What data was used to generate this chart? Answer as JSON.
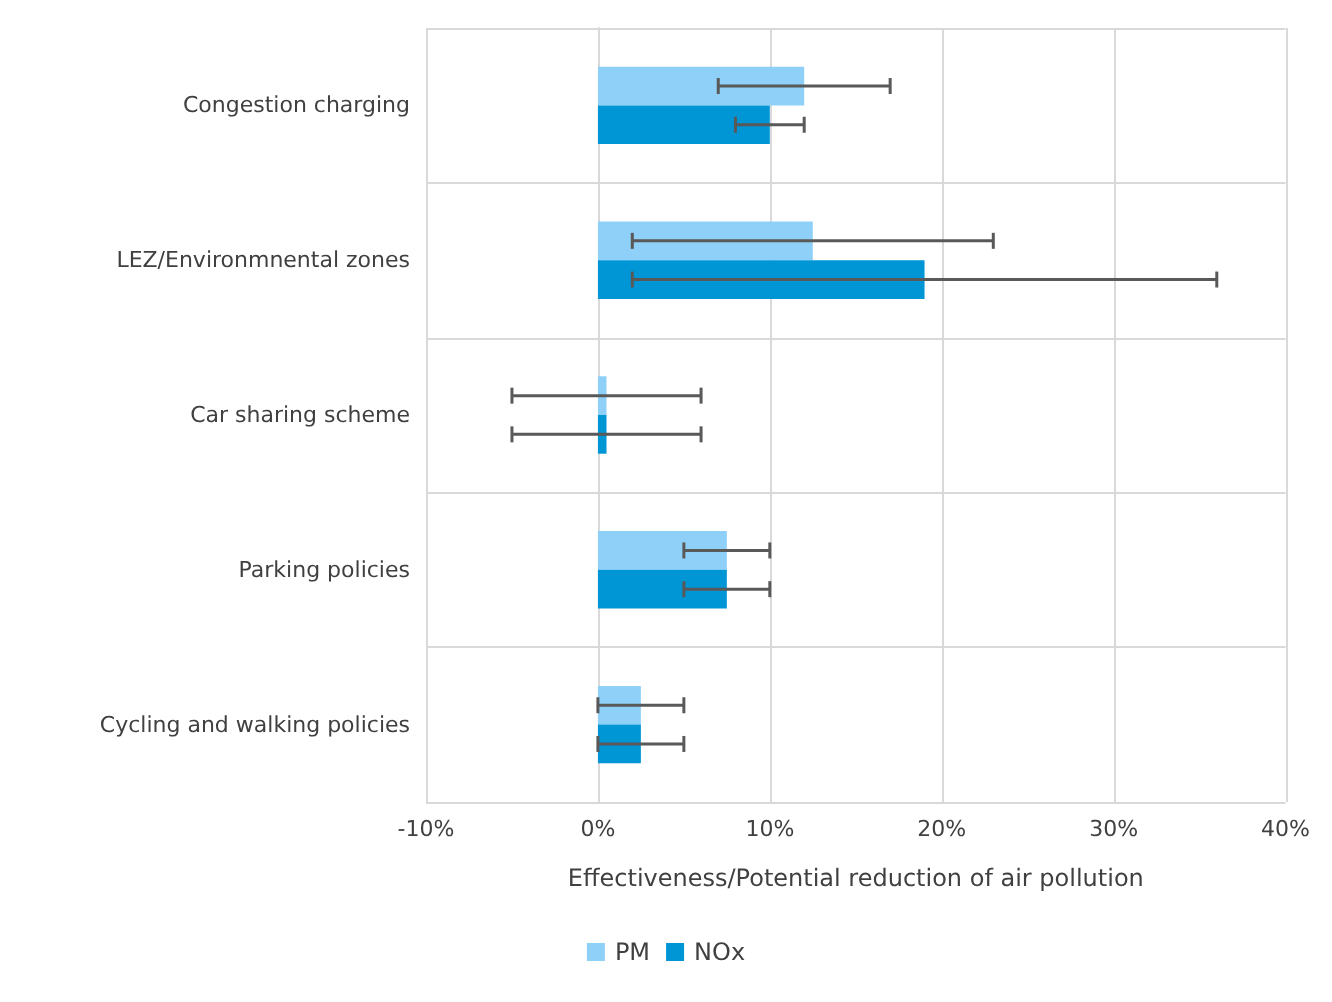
{
  "chart_data": {
    "type": "bar",
    "orientation": "horizontal",
    "xlabel": "Effectiveness/Potential reduction of air pollution",
    "categories": [
      "Congestion charging",
      "LEZ/Environmnental zones",
      "Car sharing scheme",
      "Parking policies",
      "Cycling and walking policies"
    ],
    "series": [
      {
        "name": "PM",
        "color": "#8fd0f8",
        "values": [
          12,
          12.5,
          0.5,
          7.5,
          2.5
        ],
        "errors": [
          [
            7,
            17
          ],
          [
            2,
            23
          ],
          [
            -5,
            6
          ],
          [
            5,
            10
          ],
          [
            0,
            5
          ]
        ]
      },
      {
        "name": "NOx",
        "color": "#0096d6",
        "values": [
          10,
          19,
          0.5,
          7.5,
          2.5
        ],
        "errors": [
          [
            8,
            12
          ],
          [
            2,
            36
          ],
          [
            -5,
            6
          ],
          [
            5,
            10
          ],
          [
            0,
            5
          ]
        ]
      }
    ],
    "xlim": [
      -10,
      40
    ],
    "xticks": [
      {
        "value": -10,
        "label": "-10%"
      },
      {
        "value": 0,
        "label": "0%"
      },
      {
        "value": 10,
        "label": "10%"
      },
      {
        "value": 20,
        "label": "20%"
      },
      {
        "value": 30,
        "label": "30%"
      },
      {
        "value": 40,
        "label": "40%"
      }
    ],
    "grid": true,
    "legend": "bottom"
  }
}
